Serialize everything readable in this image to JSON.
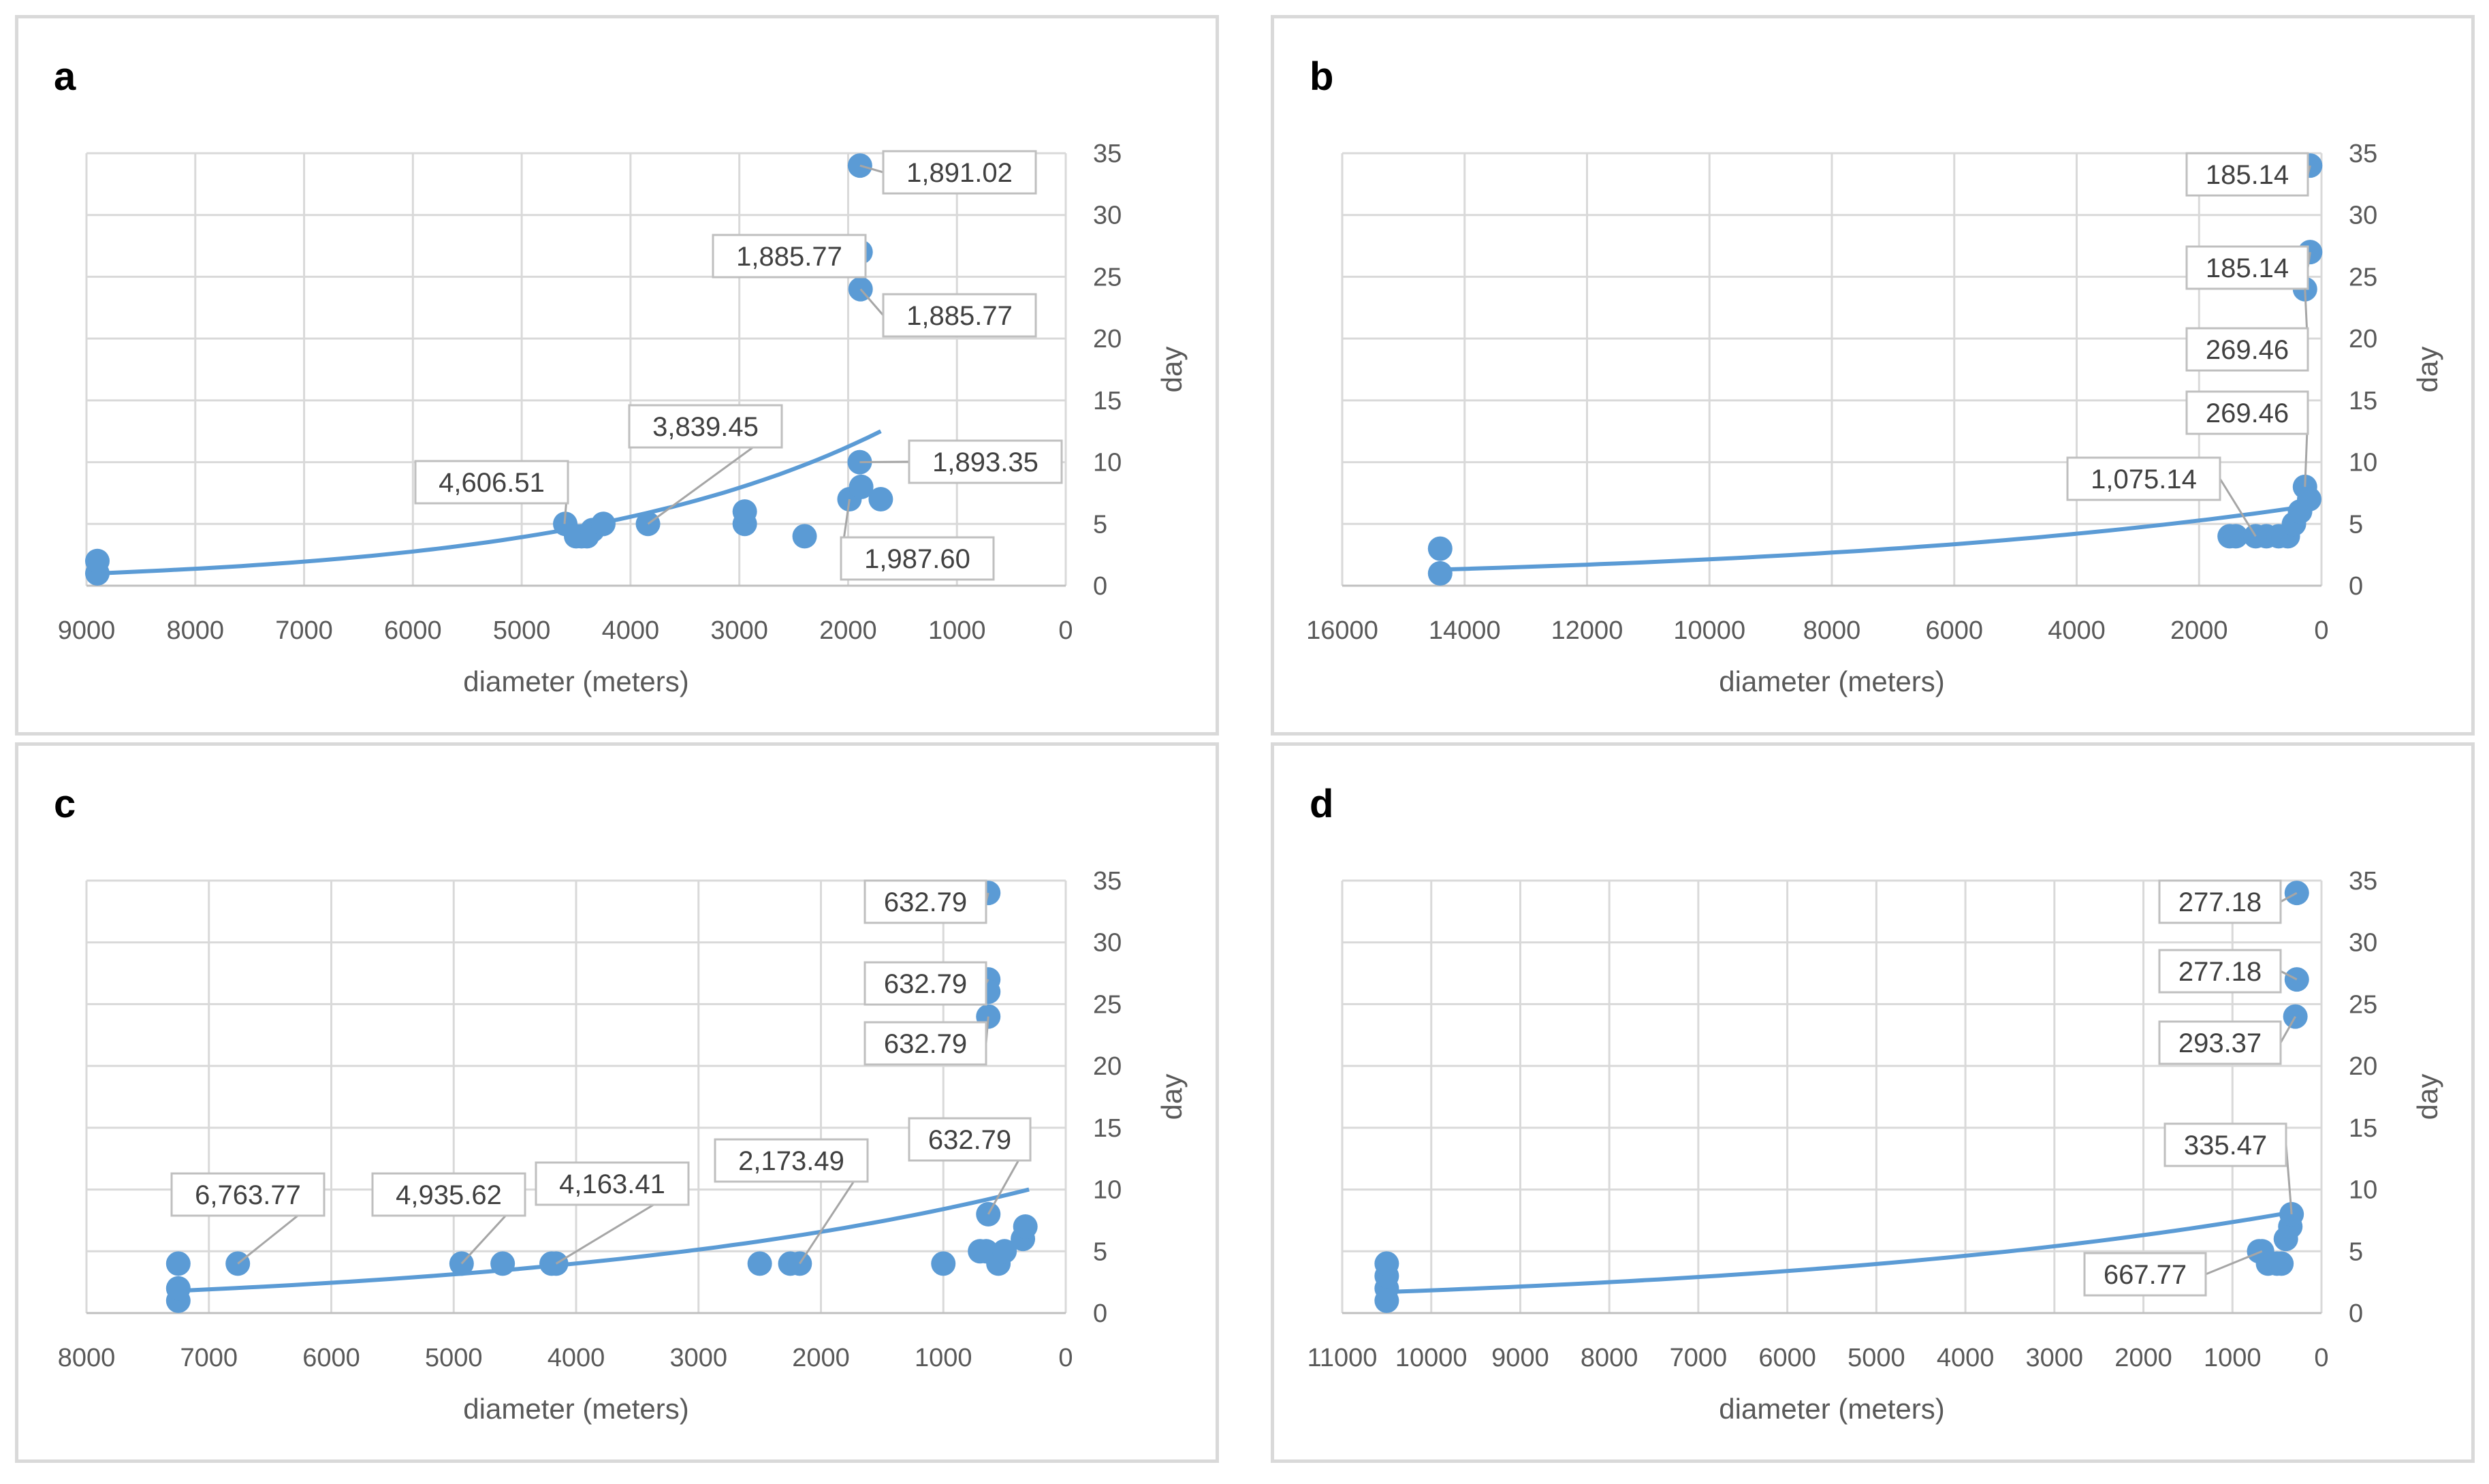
{
  "colors": {
    "series": "#5b9bd5",
    "grid": "#d9d9d9",
    "text": "#595959",
    "border": "#d9d9d9"
  },
  "chart_data": [
    {
      "id": "a",
      "type": "scatter",
      "title": "a",
      "xlabel": "diameter (meters)",
      "ylabel": "day",
      "xlim": [
        9000,
        0
      ],
      "x_reversed": true,
      "ylim": [
        0,
        35
      ],
      "xticks": [
        9000,
        8000,
        7000,
        6000,
        5000,
        4000,
        3000,
        2000,
        1000,
        0
      ],
      "yticks": [
        0,
        5,
        10,
        15,
        20,
        25,
        30,
        35
      ],
      "grid": true,
      "trendline": {
        "type": "exponential",
        "from": [
          8900,
          1
        ],
        "to": [
          1700,
          12.5
        ]
      },
      "points": [
        [
          8900,
          1
        ],
        [
          8900,
          2
        ],
        [
          4600,
          5
        ],
        [
          4500,
          4
        ],
        [
          4450,
          4
        ],
        [
          4400,
          4
        ],
        [
          4350,
          4.5
        ],
        [
          4250,
          5
        ],
        [
          3839.45,
          5
        ],
        [
          2950,
          5
        ],
        [
          2950,
          6
        ],
        [
          2400,
          4
        ],
        [
          1987.6,
          7
        ],
        [
          1893.35,
          10
        ],
        [
          1891.02,
          34
        ],
        [
          1885.77,
          27
        ],
        [
          1885.77,
          24
        ],
        [
          1880,
          8
        ],
        [
          1700,
          7
        ]
      ],
      "callouts": [
        {
          "text": "1,891.02",
          "x": 1891.02,
          "y": 34
        },
        {
          "text": "1,885.77",
          "x": 1885.77,
          "y": 27
        },
        {
          "text": "1,885.77",
          "x": 1885.77,
          "y": 24
        },
        {
          "text": "3,839.45",
          "x": 3839.45,
          "y": 5
        },
        {
          "text": "4,606.51",
          "x": 4606.51,
          "y": 5
        },
        {
          "text": "1,893.35",
          "x": 1893.35,
          "y": 10
        },
        {
          "text": "1,987.60",
          "x": 1987.6,
          "y": 7
        }
      ]
    },
    {
      "id": "b",
      "type": "scatter",
      "title": "b",
      "xlabel": "diameter (meters)",
      "ylabel": "day",
      "xlim": [
        16000,
        0
      ],
      "x_reversed": true,
      "ylim": [
        0,
        35
      ],
      "xticks": [
        16000,
        14000,
        12000,
        10000,
        8000,
        6000,
        4000,
        2000,
        0
      ],
      "yticks": [
        0,
        5,
        10,
        15,
        20,
        25,
        30,
        35
      ],
      "grid": true,
      "trendline": {
        "type": "exponential",
        "from": [
          14400,
          1.3
        ],
        "to": [
          150,
          6.5
        ]
      },
      "points": [
        [
          14400,
          1
        ],
        [
          14400,
          3
        ],
        [
          1500,
          4
        ],
        [
          1400,
          4
        ],
        [
          1075.14,
          4
        ],
        [
          900,
          4
        ],
        [
          700,
          4
        ],
        [
          550,
          4
        ],
        [
          450,
          5
        ],
        [
          350,
          6
        ],
        [
          269.46,
          8
        ],
        [
          269.46,
          24
        ],
        [
          200,
          7
        ],
        [
          185.14,
          34
        ],
        [
          185.14,
          27
        ]
      ],
      "callouts": [
        {
          "text": "185.14",
          "x": 185.14,
          "y": 34
        },
        {
          "text": "185.14",
          "x": 185.14,
          "y": 27
        },
        {
          "text": "269.46",
          "x": 269.46,
          "y": 24
        },
        {
          "text": "269.46",
          "x": 269.46,
          "y": 8
        },
        {
          "text": "1,075.14",
          "x": 1075.14,
          "y": 4
        }
      ]
    },
    {
      "id": "c",
      "type": "scatter",
      "title": "c",
      "xlabel": "diameter (meters)",
      "ylabel": "day",
      "xlim": [
        8000,
        0
      ],
      "x_reversed": true,
      "ylim": [
        0,
        35
      ],
      "xticks": [
        8000,
        7000,
        6000,
        5000,
        4000,
        3000,
        2000,
        1000,
        0
      ],
      "yticks": [
        0,
        5,
        10,
        15,
        20,
        25,
        30,
        35
      ],
      "grid": true,
      "trendline": {
        "type": "exponential",
        "from": [
          7250,
          1.8
        ],
        "to": [
          300,
          10
        ]
      },
      "points": [
        [
          7250,
          1
        ],
        [
          7250,
          2
        ],
        [
          7250,
          4
        ],
        [
          6763.77,
          4
        ],
        [
          4935.62,
          4
        ],
        [
          4600,
          4
        ],
        [
          4200,
          4
        ],
        [
          4163.41,
          4
        ],
        [
          2500,
          4
        ],
        [
          2250,
          4
        ],
        [
          2173.49,
          4
        ],
        [
          1000,
          4
        ],
        [
          700,
          5
        ],
        [
          650,
          5
        ],
        [
          632.79,
          8
        ],
        [
          632.79,
          34
        ],
        [
          632.79,
          27
        ],
        [
          632.79,
          26
        ],
        [
          632.79,
          24
        ],
        [
          550,
          4
        ],
        [
          500,
          5
        ],
        [
          350,
          6
        ],
        [
          330,
          7
        ]
      ],
      "callouts": [
        {
          "text": "632.79",
          "x": 632.79,
          "y": 34
        },
        {
          "text": "632.79",
          "x": 632.79,
          "y": 27
        },
        {
          "text": "632.79",
          "x": 632.79,
          "y": 24
        },
        {
          "text": "632.79",
          "x": 632.79,
          "y": 8
        },
        {
          "text": "6,763.77",
          "x": 6763.77,
          "y": 4
        },
        {
          "text": "4,935.62",
          "x": 4935.62,
          "y": 4
        },
        {
          "text": "4,163.41",
          "x": 4163.41,
          "y": 4
        },
        {
          "text": "2,173.49",
          "x": 2173.49,
          "y": 4
        }
      ]
    },
    {
      "id": "d",
      "type": "scatter",
      "title": "d",
      "xlabel": "diameter (meters)",
      "ylabel": "day",
      "xlim": [
        11000,
        0
      ],
      "x_reversed": true,
      "ylim": [
        0,
        35
      ],
      "xticks": [
        11000,
        10000,
        9000,
        8000,
        7000,
        6000,
        5000,
        4000,
        3000,
        2000,
        1000,
        0
      ],
      "yticks": [
        0,
        5,
        10,
        15,
        20,
        25,
        30,
        35
      ],
      "grid": true,
      "trendline": {
        "type": "exponential",
        "from": [
          10500,
          1.7
        ],
        "to": [
          300,
          8.2
        ]
      },
      "points": [
        [
          10500,
          1
        ],
        [
          10500,
          2
        ],
        [
          10500,
          3
        ],
        [
          10500,
          4
        ],
        [
          700,
          5
        ],
        [
          667.77,
          5
        ],
        [
          600,
          4
        ],
        [
          500,
          4
        ],
        [
          450,
          4
        ],
        [
          400,
          6
        ],
        [
          350,
          7
        ],
        [
          335.47,
          8
        ],
        [
          293.37,
          24
        ],
        [
          277.18,
          34
        ],
        [
          277.18,
          27
        ]
      ],
      "callouts": [
        {
          "text": "277.18",
          "x": 277.18,
          "y": 34
        },
        {
          "text": "277.18",
          "x": 277.18,
          "y": 27
        },
        {
          "text": "293.37",
          "x": 293.37,
          "y": 24
        },
        {
          "text": "335.47",
          "x": 335.47,
          "y": 8
        },
        {
          "text": "667.77",
          "x": 667.77,
          "y": 5
        }
      ]
    }
  ]
}
